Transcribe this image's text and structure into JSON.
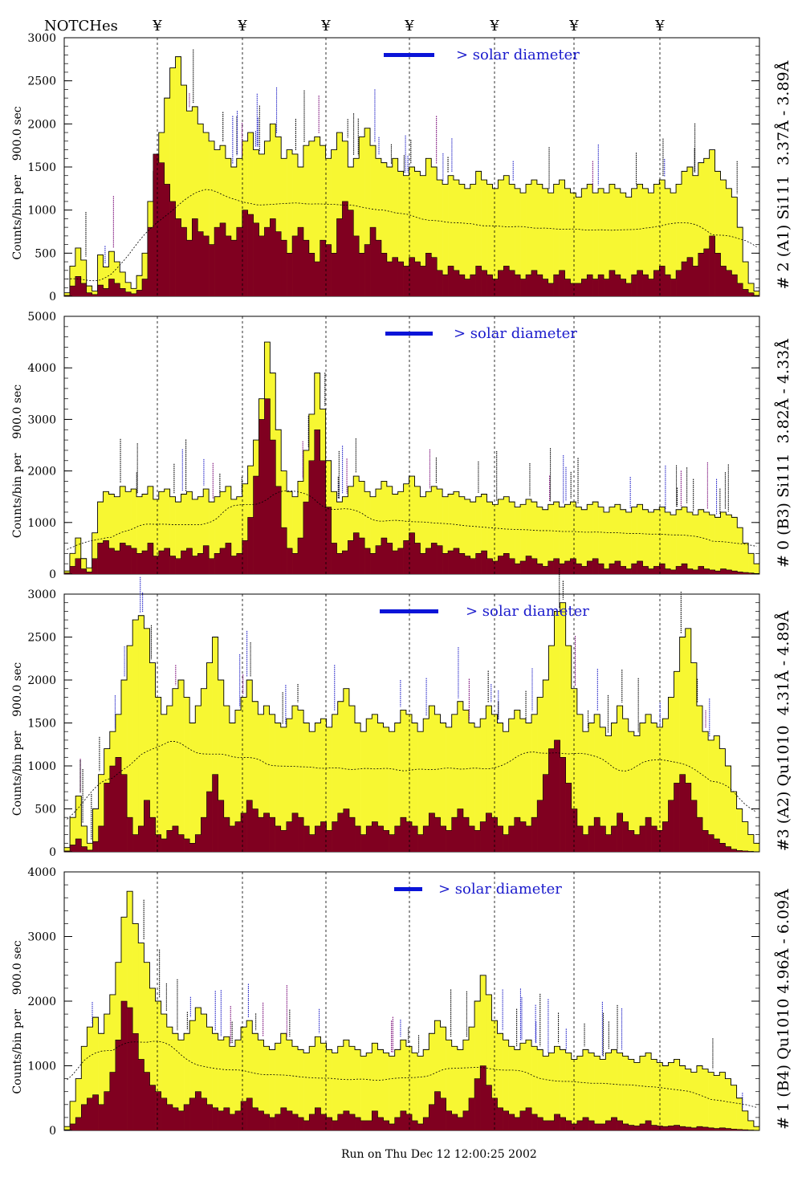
{
  "header": {
    "notches_label": "NOTCHes",
    "notch_symbol": "¥",
    "notch_count": 7
  },
  "legend_text": "> solar diameter",
  "footer_text": "Run on Thu Dec 12 12:00:25 2002",
  "colors": {
    "total_fill": "#f7f732",
    "line_fill": "#800020",
    "legend_bar": "#0a14d8",
    "legend_text": "#1a1acc",
    "stroke": "#000000",
    "label_blue": "#2424c8",
    "label_purple": "#7a0a78"
  },
  "chart_data": [
    {
      "type": "bar",
      "ylabel": "Counts/bin per    900.0 sec",
      "right_label": "# 2 (A1) Si111  3.37Å - 3.89Å",
      "ylim": [
        0,
        3000
      ],
      "yticks": [
        0,
        500,
        1000,
        1500,
        2000,
        2500,
        3000
      ],
      "grid": false,
      "series": [
        {
          "role": "total",
          "values": [
            40,
            350,
            560,
            420,
            120,
            60,
            480,
            340,
            520,
            400,
            280,
            160,
            90,
            240,
            500,
            1100,
            1450,
            1900,
            2300,
            2650,
            2780,
            2450,
            2150,
            2200,
            2000,
            1900,
            1800,
            1700,
            1750,
            1600,
            1500,
            1600,
            1800,
            1900,
            1700,
            1650,
            1800,
            2000,
            1850,
            1600,
            1700,
            1650,
            1500,
            1750,
            1800,
            1850,
            1750,
            1600,
            1700,
            1900,
            1800,
            1500,
            1600,
            1850,
            1950,
            1750,
            1600,
            1550,
            1500,
            1600,
            1450,
            1400,
            1500,
            1450,
            1400,
            1600,
            1500,
            1350,
            1300,
            1400,
            1350,
            1300,
            1250,
            1300,
            1450,
            1350,
            1300,
            1250,
            1350,
            1400,
            1300,
            1250,
            1200,
            1300,
            1350,
            1300,
            1250,
            1200,
            1300,
            1350,
            1250,
            1200,
            1150,
            1250,
            1300,
            1200,
            1250,
            1200,
            1300,
            1250,
            1200,
            1150,
            1250,
            1300,
            1250,
            1200,
            1300,
            1350,
            1250,
            1200,
            1300,
            1450,
            1500,
            1400,
            1550,
            1600,
            1700,
            1450,
            1350,
            1250,
            1150,
            800,
            400,
            150,
            60
          ]
        },
        {
          "role": "line",
          "values": [
            10,
            120,
            230,
            150,
            40,
            20,
            130,
            90,
            200,
            150,
            90,
            50,
            30,
            70,
            200,
            800,
            1650,
            1550,
            1300,
            1100,
            900,
            800,
            650,
            900,
            750,
            700,
            600,
            800,
            850,
            700,
            650,
            800,
            1000,
            950,
            850,
            700,
            800,
            900,
            750,
            650,
            500,
            700,
            800,
            650,
            500,
            400,
            650,
            600,
            500,
            900,
            1100,
            1000,
            700,
            500,
            600,
            800,
            650,
            500,
            400,
            450,
            400,
            350,
            450,
            400,
            350,
            500,
            450,
            300,
            250,
            350,
            300,
            250,
            200,
            250,
            350,
            300,
            250,
            200,
            300,
            350,
            300,
            250,
            200,
            250,
            300,
            250,
            200,
            150,
            250,
            300,
            200,
            150,
            150,
            200,
            250,
            200,
            250,
            200,
            300,
            250,
            200,
            150,
            250,
            300,
            250,
            200,
            300,
            350,
            250,
            200,
            300,
            400,
            450,
            350,
            500,
            550,
            700,
            500,
            350,
            300,
            250,
            150,
            80,
            40,
            10
          ]
        }
      ]
    },
    {
      "type": "bar",
      "ylabel": "Counts/bin per    900.0 sec",
      "right_label": "# 0 (B3) Si111  3.82Å - 4.33Å",
      "ylim": [
        0,
        5000
      ],
      "yticks": [
        0,
        1000,
        2000,
        3000,
        4000,
        5000
      ],
      "grid": false,
      "series": [
        {
          "role": "total",
          "values": [
            60,
            400,
            700,
            300,
            120,
            800,
            1400,
            1600,
            1550,
            1500,
            1700,
            1600,
            1650,
            1500,
            1550,
            1700,
            1450,
            1600,
            1650,
            1500,
            1400,
            1550,
            1600,
            1450,
            1500,
            1650,
            1400,
            1500,
            1600,
            1700,
            1450,
            1500,
            1750,
            2100,
            2600,
            3400,
            4500,
            3900,
            2800,
            2000,
            1600,
            1500,
            1800,
            2400,
            3100,
            3900,
            3200,
            2200,
            1600,
            1400,
            1500,
            1700,
            1900,
            1800,
            1600,
            1500,
            1650,
            1800,
            1700,
            1550,
            1600,
            1750,
            1900,
            1700,
            1500,
            1600,
            1700,
            1650,
            1500,
            1550,
            1600,
            1500,
            1450,
            1400,
            1500,
            1550,
            1400,
            1350,
            1450,
            1500,
            1400,
            1300,
            1350,
            1450,
            1400,
            1300,
            1250,
            1350,
            1400,
            1300,
            1350,
            1400,
            1300,
            1250,
            1350,
            1400,
            1300,
            1200,
            1300,
            1350,
            1250,
            1200,
            1300,
            1350,
            1250,
            1200,
            1250,
            1300,
            1200,
            1150,
            1250,
            1300,
            1200,
            1150,
            1250,
            1200,
            1150,
            1100,
            1200,
            1150,
            1100,
            900,
            600,
            400,
            200
          ]
        },
        {
          "role": "line",
          "values": [
            20,
            150,
            300,
            100,
            40,
            300,
            600,
            650,
            500,
            450,
            600,
            550,
            500,
            400,
            450,
            600,
            350,
            450,
            500,
            350,
            300,
            450,
            500,
            350,
            400,
            550,
            300,
            400,
            500,
            600,
            350,
            400,
            650,
            1100,
            1900,
            3000,
            3400,
            2600,
            1700,
            900,
            500,
            400,
            700,
            1400,
            2200,
            2800,
            2200,
            1300,
            600,
            400,
            450,
            650,
            800,
            700,
            500,
            400,
            550,
            700,
            600,
            450,
            500,
            650,
            800,
            600,
            400,
            500,
            600,
            550,
            400,
            450,
            500,
            400,
            350,
            300,
            400,
            450,
            300,
            250,
            350,
            400,
            300,
            200,
            250,
            350,
            300,
            200,
            150,
            250,
            300,
            200,
            250,
            300,
            200,
            150,
            250,
            300,
            200,
            100,
            200,
            250,
            150,
            100,
            200,
            250,
            150,
            100,
            150,
            200,
            100,
            80,
            150,
            200,
            100,
            80,
            150,
            100,
            80,
            60,
            100,
            80,
            60,
            40,
            30,
            20,
            10
          ]
        }
      ]
    },
    {
      "type": "bar",
      "ylabel": "Counts/bin per    900.0 sec",
      "right_label": "#3 (A2) Qu1010  4.31Å - 4.89Å",
      "ylim": [
        0,
        3000
      ],
      "yticks": [
        0,
        500,
        1000,
        1500,
        2000,
        2500,
        3000
      ],
      "grid": false,
      "series": [
        {
          "role": "total",
          "values": [
            50,
            400,
            650,
            300,
            100,
            500,
            900,
            1200,
            1400,
            1600,
            2000,
            2400,
            2700,
            2750,
            2600,
            2200,
            1800,
            1600,
            1700,
            1900,
            2000,
            1800,
            1500,
            1700,
            1900,
            2200,
            2500,
            2000,
            1700,
            1500,
            1650,
            1800,
            2000,
            1750,
            1600,
            1700,
            1600,
            1500,
            1450,
            1550,
            1700,
            1650,
            1500,
            1400,
            1500,
            1550,
            1450,
            1600,
            1750,
            1900,
            1700,
            1500,
            1400,
            1550,
            1600,
            1500,
            1450,
            1400,
            1500,
            1650,
            1600,
            1500,
            1400,
            1550,
            1700,
            1600,
            1500,
            1450,
            1600,
            1750,
            1650,
            1500,
            1450,
            1550,
            1700,
            1600,
            1500,
            1400,
            1550,
            1650,
            1550,
            1500,
            1600,
            1800,
            2000,
            2400,
            2800,
            2900,
            2400,
            1900,
            1600,
            1400,
            1500,
            1600,
            1450,
            1350,
            1500,
            1700,
            1550,
            1400,
            1350,
            1500,
            1600,
            1500,
            1450,
            1550,
            1800,
            2100,
            2500,
            2600,
            2200,
            1700,
            1400,
            1300,
            1350,
            1200,
            1000,
            700,
            500,
            350,
            200,
            100
          ]
        },
        {
          "role": "line",
          "values": [
            10,
            80,
            150,
            60,
            20,
            120,
            300,
            800,
            1000,
            1100,
            900,
            400,
            200,
            300,
            600,
            400,
            200,
            150,
            250,
            300,
            200,
            150,
            100,
            200,
            400,
            700,
            900,
            600,
            400,
            300,
            350,
            450,
            600,
            500,
            400,
            450,
            400,
            300,
            250,
            350,
            450,
            400,
            300,
            200,
            300,
            350,
            250,
            350,
            450,
            500,
            400,
            300,
            200,
            300,
            350,
            300,
            250,
            200,
            300,
            400,
            350,
            300,
            200,
            300,
            450,
            400,
            300,
            250,
            400,
            500,
            400,
            300,
            250,
            350,
            450,
            400,
            300,
            200,
            300,
            400,
            350,
            300,
            400,
            600,
            900,
            1200,
            1300,
            1100,
            800,
            500,
            300,
            200,
            300,
            400,
            300,
            200,
            300,
            450,
            350,
            250,
            200,
            300,
            400,
            300,
            250,
            350,
            600,
            800,
            900,
            800,
            600,
            400,
            250,
            200,
            150,
            100,
            60,
            30,
            15,
            10,
            5
          ]
        }
      ]
    },
    {
      "type": "bar",
      "ylabel": "Counts/bin per    900.0 sec",
      "right_label": "# 1 (B4) Qu1010 4.96Å - 6.09Å",
      "ylim": [
        0,
        4000
      ],
      "yticks": [
        0,
        1000,
        2000,
        3000,
        4000
      ],
      "grid": false,
      "series": [
        {
          "role": "total",
          "values": [
            60,
            450,
            800,
            1300,
            1600,
            1750,
            1500,
            1800,
            2100,
            2600,
            3300,
            3700,
            3200,
            2900,
            2600,
            2200,
            2000,
            1800,
            1600,
            1500,
            1400,
            1500,
            1700,
            1900,
            1800,
            1600,
            1500,
            1400,
            1450,
            1300,
            1400,
            1600,
            1700,
            1500,
            1400,
            1300,
            1250,
            1350,
            1500,
            1400,
            1300,
            1250,
            1200,
            1300,
            1450,
            1350,
            1250,
            1200,
            1300,
            1400,
            1300,
            1250,
            1150,
            1200,
            1350,
            1250,
            1200,
            1150,
            1250,
            1400,
            1300,
            1200,
            1150,
            1250,
            1500,
            1700,
            1600,
            1400,
            1300,
            1250,
            1400,
            1600,
            2000,
            2400,
            2100,
            1700,
            1500,
            1400,
            1300,
            1250,
            1350,
            1400,
            1300,
            1250,
            1150,
            1200,
            1300,
            1250,
            1200,
            1100,
            1150,
            1250,
            1200,
            1150,
            1100,
            1200,
            1250,
            1200,
            1150,
            1100,
            1050,
            1150,
            1200,
            1100,
            1050,
            1000,
            1050,
            1100,
            1000,
            950,
            900,
            1000,
            950,
            900,
            850,
            900,
            800,
            700,
            500,
            300,
            150,
            60
          ]
        },
        {
          "role": "line",
          "values": [
            10,
            100,
            200,
            400,
            500,
            550,
            400,
            600,
            900,
            1400,
            2000,
            1900,
            1500,
            1100,
            900,
            700,
            600,
            500,
            400,
            350,
            300,
            400,
            500,
            600,
            500,
            400,
            350,
            300,
            350,
            250,
            300,
            450,
            500,
            350,
            300,
            250,
            200,
            250,
            350,
            300,
            250,
            200,
            150,
            250,
            350,
            250,
            200,
            150,
            250,
            300,
            250,
            200,
            150,
            150,
            300,
            200,
            150,
            100,
            200,
            300,
            250,
            150,
            100,
            200,
            400,
            600,
            500,
            300,
            250,
            200,
            300,
            500,
            800,
            1000,
            700,
            500,
            350,
            300,
            250,
            200,
            300,
            350,
            250,
            200,
            150,
            150,
            250,
            200,
            150,
            100,
            150,
            200,
            150,
            100,
            100,
            150,
            200,
            150,
            100,
            80,
            70,
            100,
            150,
            80,
            70,
            60,
            70,
            80,
            60,
            50,
            40,
            60,
            50,
            40,
            30,
            40,
            30,
            20,
            15,
            10,
            5,
            2
          ]
        }
      ]
    }
  ]
}
